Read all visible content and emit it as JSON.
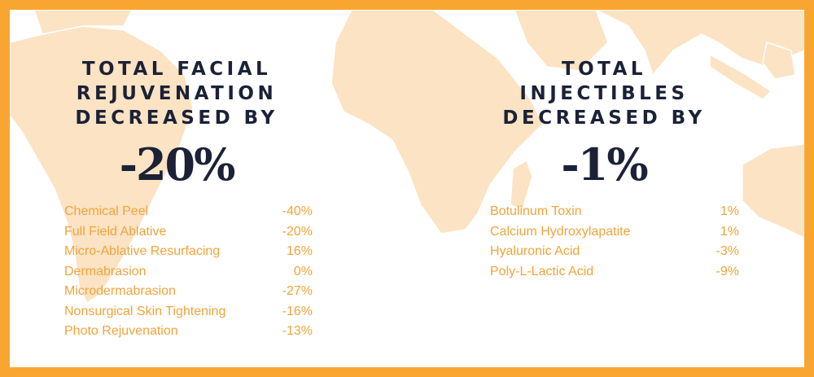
{
  "left": {
    "heading_lines": [
      "TOTAL FACIAL",
      "REJUVENATION",
      "DECREASED BY"
    ],
    "big_value": "-20%",
    "items": [
      {
        "label": "Chemical Peel",
        "value": "-40%"
      },
      {
        "label": "Full Field Ablative",
        "value": "-20%"
      },
      {
        "label": "Micro-Ablative Resurfacing",
        "value": "16%"
      },
      {
        "label": "Dermabrasion",
        "value": "0%"
      },
      {
        "label": "Microdermabrasion",
        "value": "-27%"
      },
      {
        "label": "Nonsurgical Skin Tightening",
        "value": "-16%"
      },
      {
        "label": "Photo Rejuvenation",
        "value": "-13%"
      }
    ]
  },
  "right": {
    "heading_lines": [
      "TOTAL",
      "INJECTIBLES",
      "DECREASED BY"
    ],
    "big_value": "-1%",
    "items": [
      {
        "label": "Botulinum Toxin",
        "value": "1%"
      },
      {
        "label": "Calcium Hydroxylapatite",
        "value": "1%"
      },
      {
        "label": "Hyaluronic Acid",
        "value": "-3%"
      },
      {
        "label": "Poly-L-Lactic Acid",
        "value": "-9%"
      }
    ]
  },
  "colors": {
    "frame": "#f9a532",
    "heading": "#1b2237",
    "item_text": "#f2a33a",
    "map_land": "#fbe3c4"
  }
}
